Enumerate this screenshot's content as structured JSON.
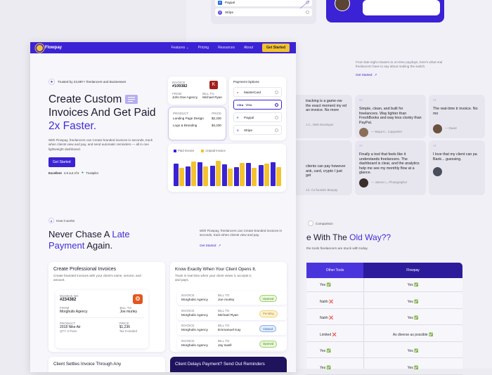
{
  "colors": {
    "brand": "#3b22d4",
    "accent": "#f2c230",
    "purple_text": "#3f2fd6"
  },
  "back": {
    "top_options": [
      {
        "label": "Paypal",
        "icon": "paypal-icon"
      },
      {
        "label": "Stripe",
        "icon": "stripe-icon"
      }
    ],
    "intro_text": "From late-night chasers to on-time paydays, here's what real freelancers have to say about making the switch.",
    "intro_link": "Get Started",
    "testimonials": [
      {
        "text": "tracking is a game-ow the exact moment my ed an invoice. No more",
        "who": "J C., Web Developer"
      },
      {
        "text": "Simple, clean, and built for freelancers. Way lighter than FreshBooks and way less clunky than PayPal.",
        "who": "— Maya K., Copywriter"
      },
      {
        "text": "The real-time tr invoice. No mo",
        "who": "— David"
      },
      {
        "text": "clients can pay however ank, card, crypto I just get",
        "who": "J.k. Co-founder Beepay"
      },
      {
        "text": "Finally a tool that feels like it understands freelancers. The dashboard is clear, and the analytics help me see my monthly flow at a glance.",
        "who": "— James L., Photographer"
      },
      {
        "text": "I love that my client can pa Bank... guessing.",
        "who": ""
      }
    ],
    "compare_badge": "Comparison",
    "compare_title_pre": "e With The",
    "compare_title_hl": "Old Way??",
    "compare_sub": "the tools freelancers are stuck with today",
    "compare_headers": [
      "Other Tools",
      "Flowpay"
    ],
    "compare_rows": [
      [
        "Yes ✅",
        "Yes ✅"
      ],
      [
        "Nahh ❌",
        "Yes ✅"
      ],
      [
        "Nahh ❌",
        "Yes ✅"
      ],
      [
        "Limited ❌",
        "As diverse as possible ✅"
      ],
      [
        "Yes ✅",
        "Yes ✅"
      ],
      [
        "Yes ✅",
        "Yes ✅"
      ]
    ]
  },
  "nav": {
    "brand": "Flowpay",
    "links": [
      "Features",
      "Pricing",
      "Resources",
      "About"
    ],
    "cta": "Get Started"
  },
  "hero": {
    "trust": "Trusted by 23,897+ freelancers and Businesses",
    "title_1": "Create Custom",
    "title_2": "Invoices And Get Paid",
    "title_3": "2x Faster.",
    "desc": "With Flowpay, freelancers can Create branded invoices in seconds, track when clients view and pay, and send automatic reminders — all in one lightweight dashboard.",
    "cta": "Get Started",
    "rating_label": "Excellent",
    "rating_value": "4.8 out of 5",
    "rating_source": "Trustpilot"
  },
  "mock_invoice": {
    "invoice_label": "INVOICE",
    "invoice_no": "#109382",
    "from_label": "FROM",
    "from": "John Doe Agency",
    "billto_label": "BILL TO",
    "billto": "Michael Ryan",
    "product_label": "PRODUCT",
    "price_label": "PRICE",
    "items": [
      {
        "name": "Landing Page Design",
        "price": "$2,230"
      },
      {
        "name": "Logo & Branding",
        "price": "$4,230"
      }
    ]
  },
  "payment_options": {
    "title": "Payment Options",
    "items": [
      "MasterCard",
      "Visa",
      "Paypal",
      "Stripe"
    ],
    "selected": "Visa"
  },
  "chart_data": {
    "type": "bar",
    "series": [
      {
        "name": "Paid Invoice",
        "color": "#3b22d4",
        "values": [
          72,
          62,
          76,
          66,
          70,
          60,
          74,
          68,
          76
        ]
      },
      {
        "name": "Unpaid Invoice",
        "color": "#f2c230",
        "values": [
          58,
          78,
          62,
          80,
          56,
          74,
          58,
          72,
          60
        ]
      }
    ]
  },
  "how": {
    "badge": "How it works",
    "title_1": "Never Chase A",
    "title_hl_1": "Late",
    "title_hl_2": "Payment",
    "title_2": "Again.",
    "desc": "With Flowpay, freelancers can Create branded invoices in seconds, track when clients view and pay.",
    "link": "Get Started"
  },
  "feature_1": {
    "title": "Create Professional Invoices",
    "desc": "Create branded invoices with your client's name, service, and amount.",
    "invoice_label": "INVOICE NO",
    "invoice_no": "#234382",
    "from_label": "FROM",
    "from": "Morghulis Agency",
    "billto_label": "BILL TO",
    "billto": "Joe murley",
    "product_label": "PRODUCT",
    "product": "2018 Nike Air",
    "qty": "QTY 3 Pairs",
    "price_label": "PRICE",
    "price": "$1,236",
    "tax": "Tax Included"
  },
  "feature_2": {
    "title": "Know Exactly When Your Client Opens It.",
    "desc": "Track in real time when your client views it, accepts it, and pays.",
    "rows": [
      {
        "from": "Morghulis Agency",
        "to": "Joe murley",
        "status": "Opened",
        "kind": "opened"
      },
      {
        "from": "Morghulis Agency",
        "to": "Michael Ryan",
        "status": "Pending",
        "kind": "pending"
      },
      {
        "from": "Morghulis Agency",
        "to": "Emmanuel Kay",
        "status": "Viewed",
        "kind": "viewed"
      },
      {
        "from": "Morghulis Agency",
        "to": "Jay swell",
        "status": "Opened",
        "kind": "opened"
      }
    ],
    "col_from": "INVOICE",
    "col_to": "BILL TO"
  },
  "bottom": {
    "left_title": "Client Settles Invoice Through Any",
    "right_title": "Client Delays Payment? Send Out Reminders"
  }
}
